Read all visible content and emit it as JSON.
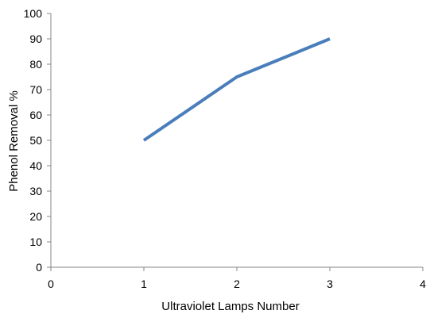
{
  "chart_data": {
    "type": "line",
    "title": "",
    "xlabel": "Ultraviolet Lamps Number",
    "ylabel": "Phenol Removal %",
    "xlim": [
      0,
      4
    ],
    "ylim": [
      0,
      100
    ],
    "x_ticks": [
      "0",
      "1",
      "2",
      "3",
      "4"
    ],
    "y_ticks": [
      "0",
      "10",
      "20",
      "30",
      "40",
      "50",
      "60",
      "70",
      "80",
      "90",
      "100"
    ],
    "grid": false,
    "legend": "none",
    "series": [
      {
        "x": [
          1,
          2,
          3
        ],
        "y": [
          50,
          75,
          90
        ],
        "color": "#4a7ebb"
      }
    ]
  }
}
